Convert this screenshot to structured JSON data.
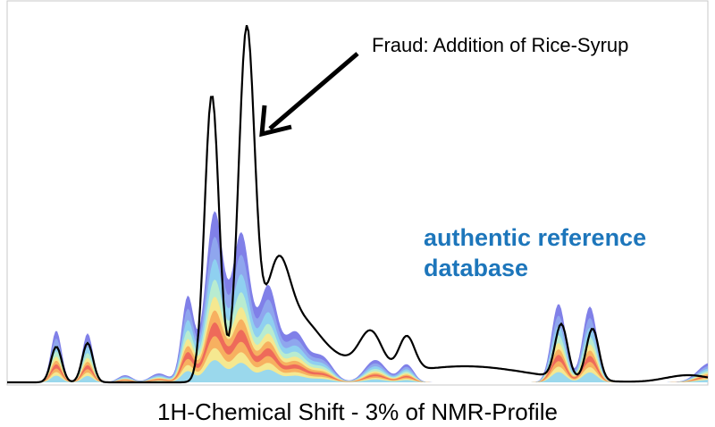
{
  "chart_data": {
    "type": "spectrum",
    "annotation": "Fraud: Addition of Rice-Syrup",
    "legend_label": "authentic reference database",
    "x_label": "1H-Chemical Shift - 3% of NMR-Profile"
  }
}
